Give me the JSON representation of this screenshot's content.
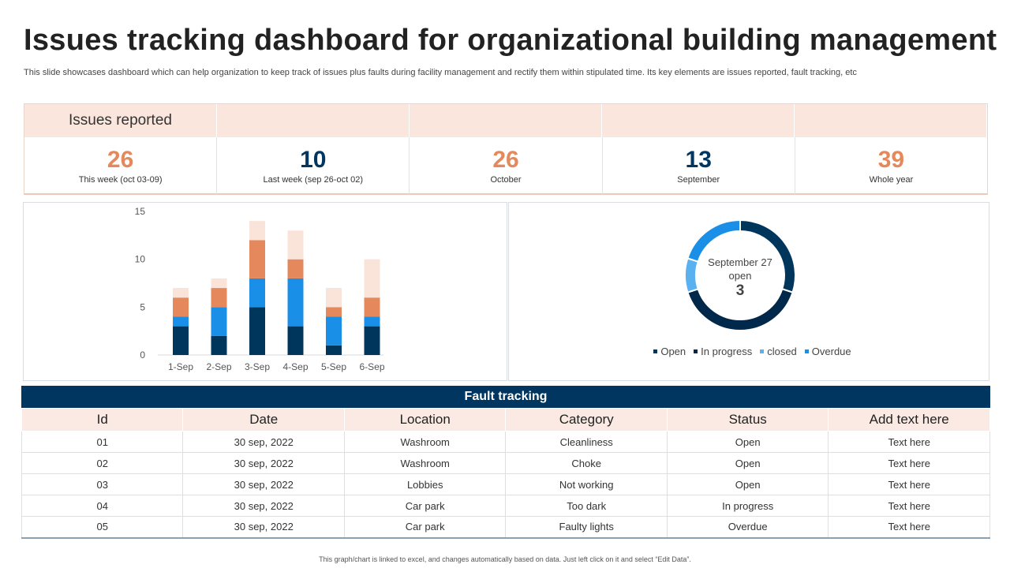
{
  "title": "Issues tracking dashboard for organizational building management",
  "subtitle": "This slide showcases dashboard which can help organization to keep track of issues plus faults during facility management and rectify them within stipulated time. Its key elements are issues reported, fault tracking, etc",
  "kpi": {
    "header": "Issues reported",
    "items": [
      {
        "value": "26",
        "label": "This week (oct 03-09)",
        "color": "#e5895d"
      },
      {
        "value": "10",
        "label": "Last week (sep 26-oct 02)",
        "color": "#00365f"
      },
      {
        "value": "26",
        "label": "October",
        "color": "#e5895d"
      },
      {
        "value": "13",
        "label": "September",
        "color": "#00365f"
      },
      {
        "value": "39",
        "label": "Whole year",
        "color": "#e5895d"
      }
    ]
  },
  "chart_data": [
    {
      "type": "bar",
      "stacked": true,
      "categories": [
        "1-Sep",
        "2-Sep",
        "3-Sep",
        "4-Sep",
        "5-Sep",
        "6-Sep"
      ],
      "series": [
        {
          "values": [
            3,
            2,
            5,
            3,
            1,
            3
          ],
          "color": "#00365c"
        },
        {
          "values": [
            1,
            3,
            3,
            5,
            3,
            1
          ],
          "color": "#1a8fe8"
        },
        {
          "values": [
            2,
            2,
            4,
            2,
            1,
            2
          ],
          "color": "#e5895d"
        },
        {
          "values": [
            1,
            1,
            2,
            3,
            2,
            4
          ],
          "color": "#fae3d9"
        }
      ],
      "ylim": [
        0,
        15
      ],
      "yticks": [
        0,
        5,
        10,
        15
      ],
      "grid": false
    },
    {
      "type": "pie",
      "donut": true,
      "labels": [
        "Open",
        "In progress",
        "closed",
        "Overdue"
      ],
      "values": [
        3,
        4,
        1,
        2
      ],
      "colors": [
        "#00365c",
        "#00284a",
        "#5ab1f0",
        "#1a8fe8"
      ],
      "center_text": {
        "line1": "September 27",
        "line2": "open",
        "value": "3"
      },
      "legend": "bottom"
    }
  ],
  "fault_tracking": {
    "title": "Fault tracking",
    "columns": [
      "Id",
      "Date",
      "Location",
      "Category",
      "Status",
      "Add text here"
    ],
    "rows": [
      [
        "01",
        "30 sep, 2022",
        "Washroom",
        "Cleanliness",
        "Open",
        "Text here"
      ],
      [
        "02",
        "30 sep, 2022",
        "Washroom",
        "Choke",
        "Open",
        "Text here"
      ],
      [
        "03",
        "30 sep, 2022",
        "Lobbies",
        "Not working",
        "Open",
        "Text here"
      ],
      [
        "04",
        "30 sep, 2022",
        "Car park",
        "Too dark",
        "In progress",
        "Text here"
      ],
      [
        "05",
        "30 sep, 2022",
        "Car park",
        "Faulty lights",
        "Overdue",
        "Text here"
      ]
    ]
  },
  "footer": "This graph/chart is linked to excel, and changes automatically based on data. Just left click on it and select “Edit Data”."
}
